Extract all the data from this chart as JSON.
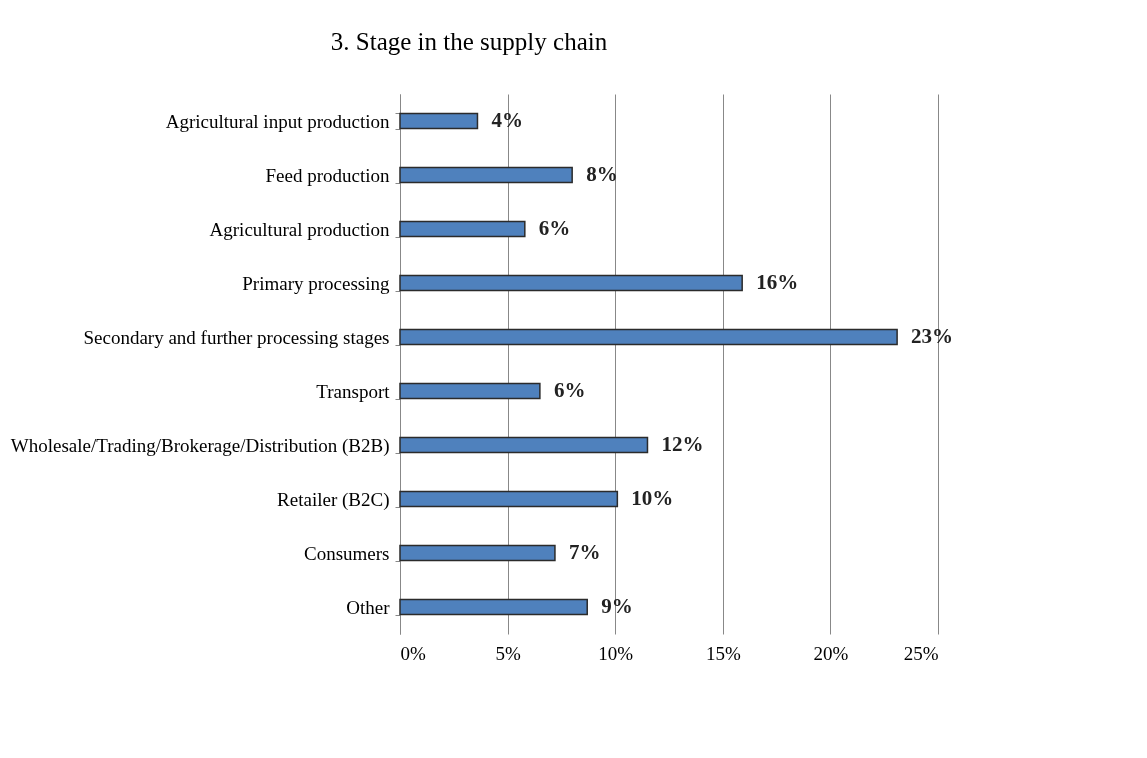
{
  "chart_data": {
    "type": "bar",
    "orientation": "horizontal",
    "title": "3. Stage in the supply chain",
    "categories": [
      "Agricultural input production",
      "Feed production",
      "Agricultural production",
      "Primary processing",
      "Secondary and further processing stages",
      "Transport",
      "Wholesale/Trading/Brokerage/Distribution (B2B)",
      "Retailer (B2C)",
      "Consumers",
      "Other"
    ],
    "values": [
      3.6,
      8.0,
      5.8,
      15.9,
      23.1,
      6.5,
      11.5,
      10.1,
      7.2,
      8.7
    ],
    "value_labels": [
      "4%",
      "8%",
      "6%",
      "16%",
      "23%",
      "6%",
      "12%",
      "10%",
      "7%",
      "9%"
    ],
    "color": "#4f81bd",
    "xlim": [
      0,
      25
    ],
    "xticks": [
      {
        "value": 0,
        "label": "0%"
      },
      {
        "value": 5,
        "label": "5%"
      },
      {
        "value": 10,
        "label": "10%"
      },
      {
        "value": 15,
        "label": "15%"
      },
      {
        "value": 20,
        "label": "20%"
      },
      {
        "value": 25,
        "label": "25%"
      }
    ],
    "grid": "x"
  }
}
